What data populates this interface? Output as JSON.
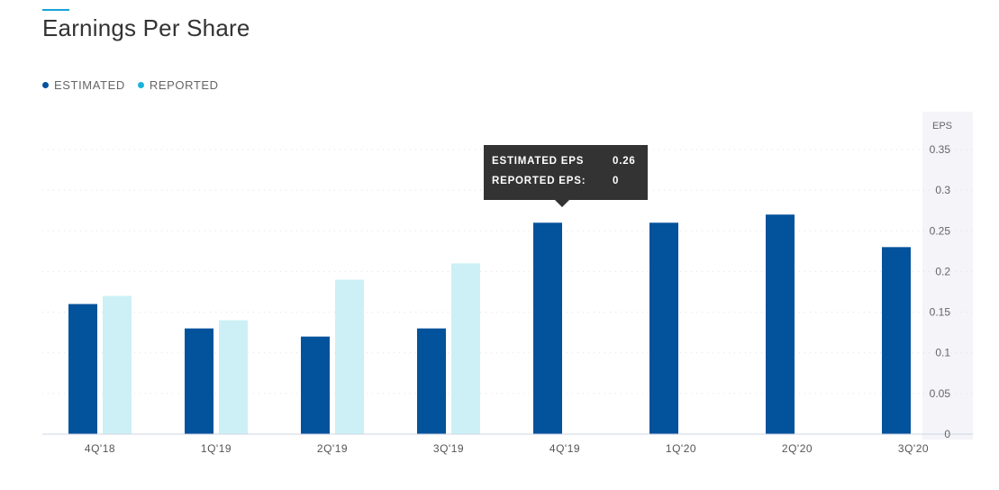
{
  "header": {
    "title": "Earnings Per Share"
  },
  "colors": {
    "accent": "#1aa3d9",
    "estimated": "#03529c",
    "reported": "#ccf0f5",
    "reported_legend": "#1ab3dc",
    "tooltip_bg": "#333333"
  },
  "legend": {
    "estimated": "ESTIMATED",
    "reported": "REPORTED"
  },
  "tooltip": {
    "estimated_label": "ESTIMATED EPS",
    "estimated_value": "0.26",
    "reported_label": "REPORTED EPS:",
    "reported_value": "0"
  },
  "chart_data": {
    "type": "bar",
    "title": "Earnings Per Share",
    "ylabel": "EPS",
    "categories": [
      "4Q'18",
      "1Q'19",
      "2Q'19",
      "3Q'19",
      "4Q'19",
      "1Q'20",
      "2Q'20",
      "3Q'20"
    ],
    "series": [
      {
        "name": "ESTIMATED",
        "values": [
          0.16,
          0.13,
          0.12,
          0.13,
          0.26,
          0.26,
          0.27,
          0.23
        ]
      },
      {
        "name": "REPORTED",
        "values": [
          0.17,
          0.14,
          0.19,
          0.21,
          null,
          null,
          null,
          null
        ]
      }
    ],
    "ylim": [
      0,
      0.35
    ],
    "yticks": [
      "0",
      "0.05",
      "0.1",
      "0.15",
      "0.2",
      "0.25",
      "0.3",
      "0.35"
    ],
    "grid": true,
    "legend_position": "top-left"
  }
}
